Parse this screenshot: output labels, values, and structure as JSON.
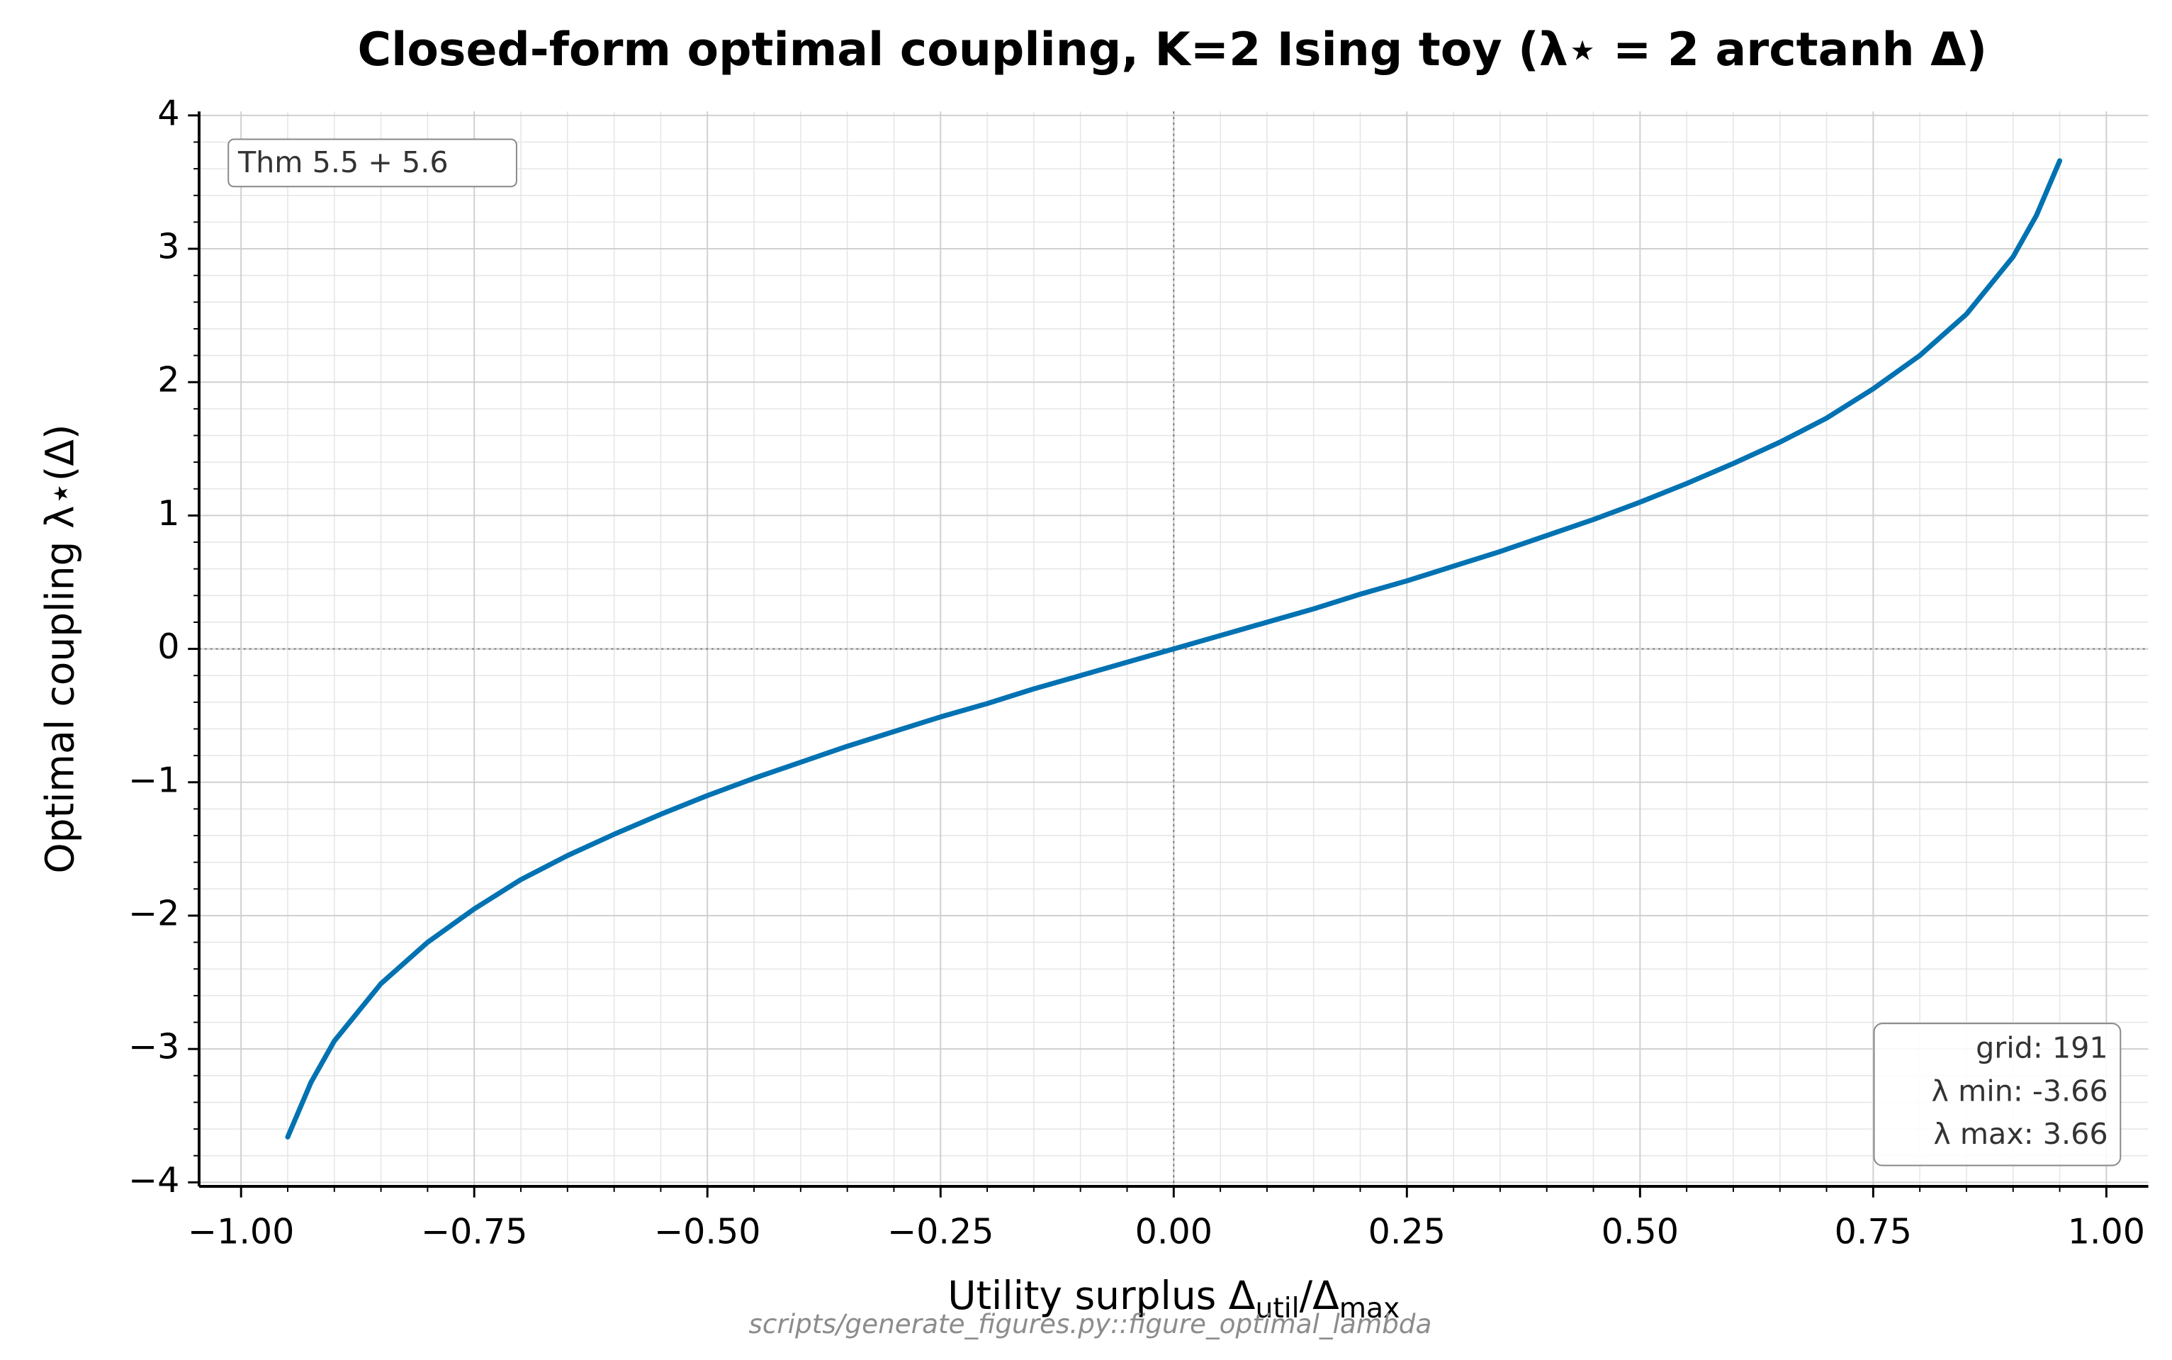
{
  "chart_data": {
    "type": "line",
    "title": "Closed-form optimal coupling, K=2 Ising toy (λ⋆ = 2 arctanh Δ)",
    "xlabel": {
      "main": "Utility surplus Δ",
      "sub1": "util",
      "mid": "/Δ",
      "sub2": "max"
    },
    "ylabel": "Optimal coupling λ⋆(Δ)",
    "color": "#0072b2",
    "x": [
      -0.95,
      -0.925,
      -0.9,
      -0.85,
      -0.8,
      -0.75,
      -0.7,
      -0.65,
      -0.6,
      -0.55,
      -0.5,
      -0.45,
      -0.4,
      -0.35,
      -0.3,
      -0.25,
      -0.2,
      -0.15,
      -0.1,
      -0.05,
      0,
      0.05,
      0.1,
      0.15,
      0.2,
      0.25,
      0.3,
      0.35,
      0.4,
      0.45,
      0.5,
      0.55,
      0.6,
      0.65,
      0.7,
      0.75,
      0.8,
      0.85,
      0.9,
      0.925,
      0.95
    ],
    "values": [
      -3.66,
      -3.25,
      -2.94,
      -2.51,
      -2.2,
      -1.95,
      -1.73,
      -1.55,
      -1.39,
      -1.24,
      -1.1,
      -0.97,
      -0.85,
      -0.73,
      -0.62,
      -0.51,
      -0.41,
      -0.3,
      -0.2,
      -0.1,
      0,
      0.1,
      0.2,
      0.3,
      0.41,
      0.51,
      0.62,
      0.73,
      0.85,
      0.97,
      1.1,
      1.24,
      1.39,
      1.55,
      1.73,
      1.95,
      2.2,
      2.51,
      2.94,
      3.25,
      3.66
    ],
    "xlim": [
      -1.045,
      1.045
    ],
    "ylim": [
      -4.03,
      4.03
    ],
    "xticks": [
      {
        "value": -1,
        "label": "−1.00"
      },
      {
        "value": -0.75,
        "label": "−0.75"
      },
      {
        "value": -0.5,
        "label": "−0.50"
      },
      {
        "value": -0.25,
        "label": "−0.25"
      },
      {
        "value": 0,
        "label": "0.00"
      },
      0.25,
      {
        "value": 0.5,
        "label": "0.50"
      },
      0.75,
      {
        "value": 1,
        "label": "1.00"
      }
    ],
    "yticks": [
      {
        "value": -4,
        "label": "−4"
      },
      {
        "value": -3,
        "label": "−3"
      },
      {
        "value": -2,
        "label": "−2"
      },
      {
        "value": -1,
        "label": "−1"
      },
      0,
      1,
      2,
      3,
      4
    ],
    "grid": true,
    "minor_grid": true,
    "hline": 0,
    "vline": 0,
    "note": "Thm 5.5 + 5.6",
    "stats": [
      "grid: 191",
      "λ min: -3.66",
      "λ max: 3.66"
    ],
    "source": "scripts/generate_figures.py::figure_optimal_lambda"
  }
}
